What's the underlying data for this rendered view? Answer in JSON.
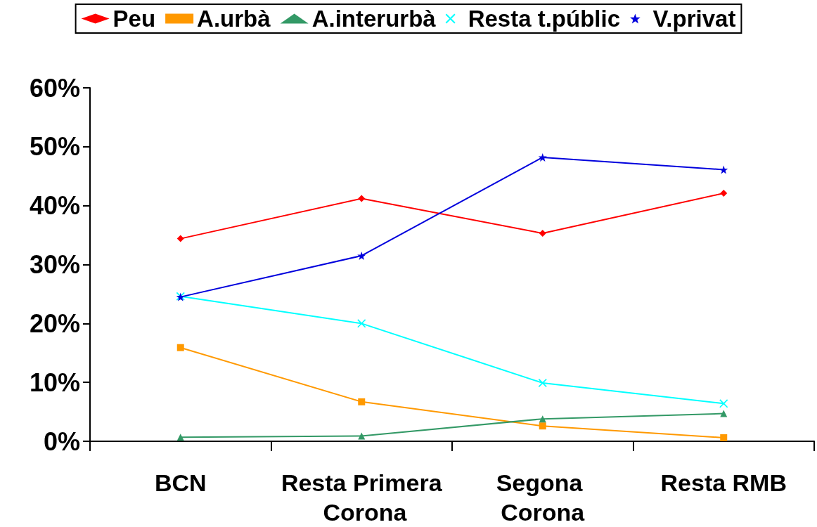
{
  "chart_data": {
    "type": "line",
    "categories": [
      "BCN",
      "Resta Primera Corona",
      "Segona Corona",
      "Resta RMB"
    ],
    "series": [
      {
        "name": "Peu",
        "color": "#ff0000",
        "marker": "diamond",
        "values": [
          34.4,
          41.2,
          35.3,
          42.1
        ]
      },
      {
        "name": "A.urbà",
        "color": "#ff9900",
        "marker": "square",
        "values": [
          15.9,
          6.7,
          2.6,
          0.6
        ]
      },
      {
        "name": "A.interurbà",
        "color": "#339966",
        "marker": "triangle",
        "values": [
          0.7,
          0.9,
          3.8,
          4.7
        ]
      },
      {
        "name": "Resta t.públic",
        "color": "#00ffff",
        "marker": "cross",
        "values": [
          24.6,
          20.0,
          9.9,
          6.4
        ]
      },
      {
        "name": "V.privat",
        "color": "#0000dd",
        "marker": "star",
        "values": [
          24.5,
          31.5,
          48.2,
          46.1
        ]
      }
    ],
    "ylim": [
      0,
      60
    ],
    "yticks": [
      {
        "value": 0,
        "label": "0%"
      },
      {
        "value": 10,
        "label": "10%"
      },
      {
        "value": 20,
        "label": "20%"
      },
      {
        "value": 30,
        "label": "30%"
      },
      {
        "value": 40,
        "label": "40%"
      },
      {
        "value": 50,
        "label": "50%"
      },
      {
        "value": 60,
        "label": "60%"
      }
    ],
    "grid": false,
    "legend": "top",
    "line_style": "solid"
  }
}
